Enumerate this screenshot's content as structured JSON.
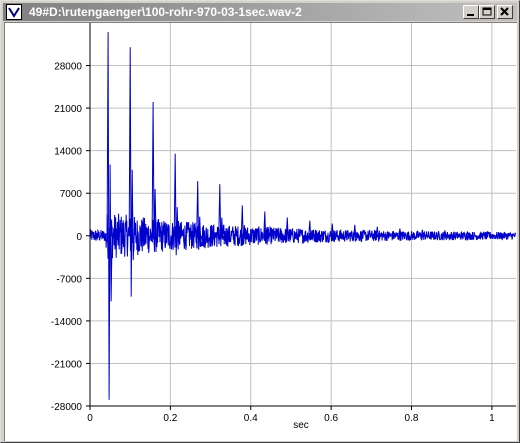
{
  "window": {
    "title": "49#D:\\rutengaenger\\100-rohr-970-03-1sec.wav-2",
    "buttons": [
      "minimize-icon",
      "maximize-icon",
      "close-icon"
    ]
  },
  "colors": {
    "signal": "#0000cc",
    "grid": "#c0c0c0",
    "titlebar_start": "#808080",
    "titlebar_end": "#c0c0c0"
  },
  "chart_data": {
    "type": "line",
    "title": "",
    "xlabel": "sec",
    "ylabel": "",
    "xlim": [
      0,
      1.06
    ],
    "ylim": [
      -28000,
      35000
    ],
    "grid": true,
    "x_ticks": [
      0,
      0.2,
      0.4,
      0.6,
      0.8,
      1
    ],
    "x_tick_labels": [
      "0",
      "0.2",
      "0.4",
      "0.6",
      "0.8",
      "1"
    ],
    "y_ticks": [
      28000,
      21000,
      14000,
      7000,
      0,
      -7000,
      -14000,
      -21000,
      -28000
    ],
    "y_tick_labels": [
      "28000",
      "21000",
      "14000",
      "7000",
      "0",
      "-7000",
      "-14000",
      "-21000",
      "-28000"
    ],
    "series": [
      {
        "peaks": [
          {
            "x": 0.045,
            "max": 33500,
            "min": -27000
          },
          {
            "x": 0.1,
            "max": 31000,
            "min": -10000
          },
          {
            "x": 0.157,
            "max": 22000,
            "min": -1500
          },
          {
            "x": 0.212,
            "max": 13500,
            "min": -3200
          },
          {
            "x": 0.268,
            "max": 9000,
            "min": -2300
          },
          {
            "x": 0.323,
            "max": 8500,
            "min": -1700
          },
          {
            "x": 0.379,
            "max": 5000,
            "min": -1400
          },
          {
            "x": 0.435,
            "max": 4000,
            "min": -1300
          },
          {
            "x": 0.491,
            "max": 3000,
            "min": -900
          },
          {
            "x": 0.547,
            "max": 2500,
            "min": -700
          },
          {
            "x": 0.603,
            "max": 2000,
            "min": -500
          },
          {
            "x": 0.659,
            "max": 1800,
            "min": -400
          },
          {
            "x": 0.715,
            "max": 1500,
            "min": -300
          },
          {
            "x": 0.771,
            "max": 1200,
            "min": -300
          },
          {
            "x": 0.827,
            "max": 1000,
            "min": -200
          },
          {
            "x": 0.883,
            "max": 900,
            "min": -200
          },
          {
            "x": 0.939,
            "max": 700,
            "min": -200
          },
          {
            "x": 0.995,
            "max": 600,
            "min": -100
          }
        ]
      }
    ]
  }
}
